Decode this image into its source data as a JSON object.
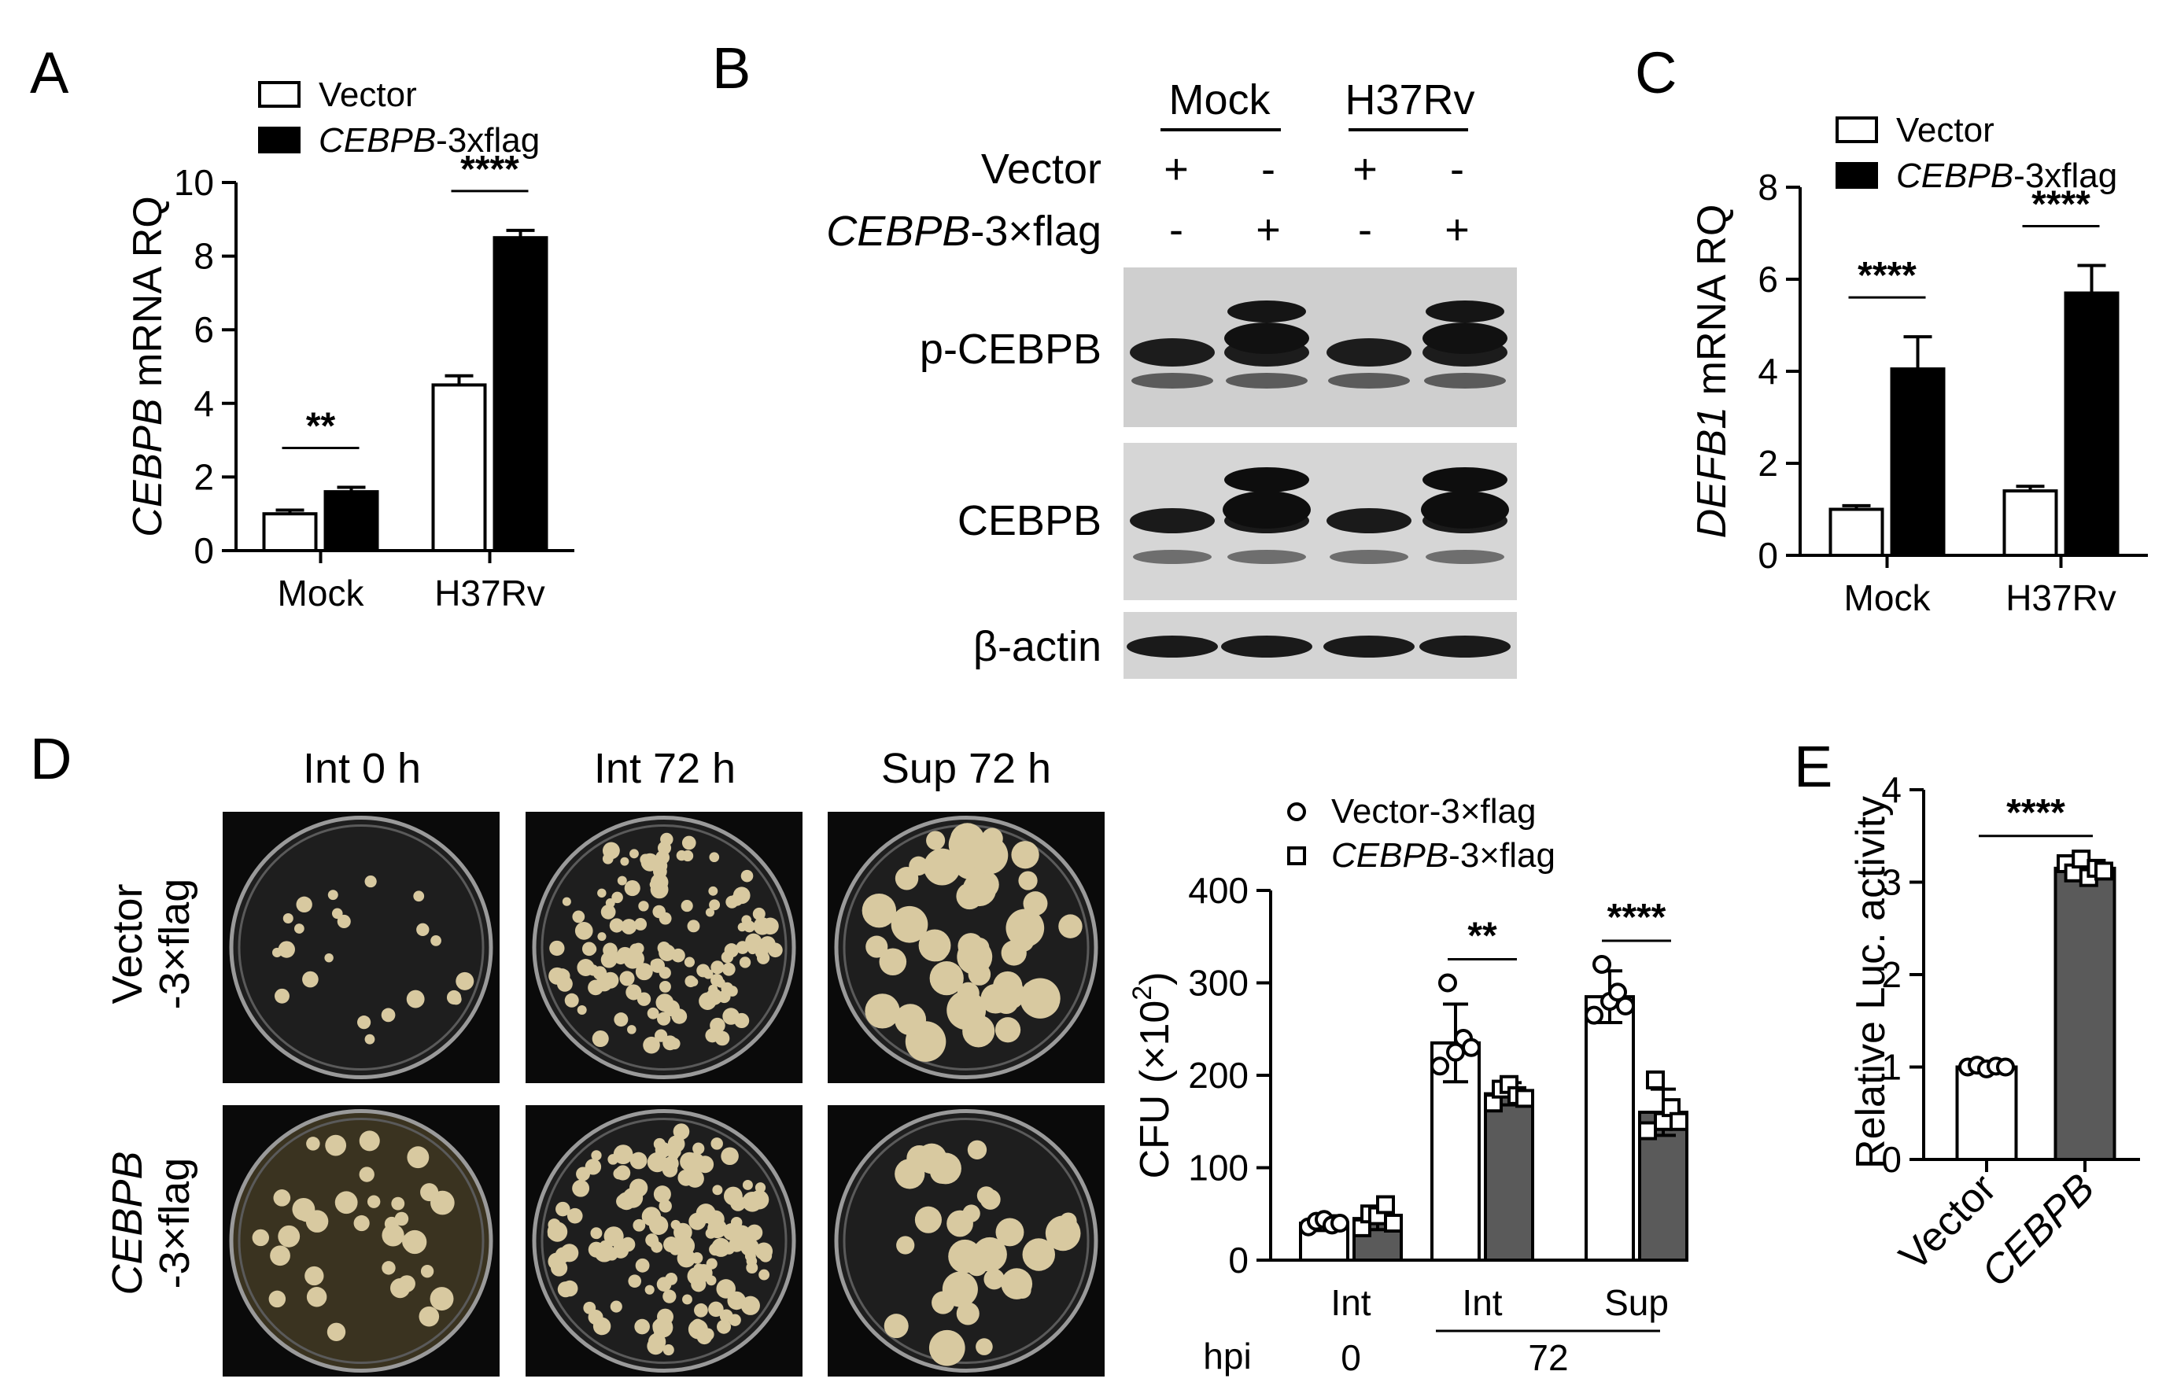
{
  "panels": [
    {
      "letter": "A",
      "chart_data": {
        "type": "bar",
        "categories": [
          "Mock",
          "H37Rv"
        ],
        "ylabel_gene": "CEBPB",
        "ylabel_suffix": " mRNA RQ",
        "ylim": [
          0,
          10
        ],
        "yticks": [
          0,
          2,
          4,
          6,
          8,
          10
        ],
        "legend": [
          {
            "gene": "",
            "suffix": "Vector"
          },
          {
            "gene": "CEBPB",
            "suffix": "-3xflag"
          }
        ],
        "series": [
          {
            "name": "Vector",
            "values": [
              1.0,
              4.5
            ],
            "errors": [
              0.1,
              0.25
            ],
            "fill": "#ffffff"
          },
          {
            "name": "CEBPB-3xflag",
            "values": [
              1.6,
              8.5
            ],
            "errors": [
              0.12,
              0.2
            ],
            "fill": "#000000"
          }
        ],
        "significance": [
          "**",
          "****"
        ]
      }
    },
    {
      "letter": "B",
      "blot": {
        "group_labels": [
          "Mock",
          "H37Rv"
        ],
        "rows": [
          {
            "label_gene": "",
            "label": "Vector",
            "marks": [
              "+",
              "-",
              "+",
              "-"
            ]
          },
          {
            "label_gene": "CEBPB",
            "label": "-3×flag",
            "marks": [
              "-",
              "+",
              "-",
              "+"
            ]
          }
        ],
        "bands": [
          "p-CEBPB",
          "CEBPB",
          "β-actin"
        ]
      }
    },
    {
      "letter": "C",
      "chart_data": {
        "type": "bar",
        "categories": [
          "Mock",
          "H37Rv"
        ],
        "ylabel_gene": "DEFB1",
        "ylabel_suffix": " mRNA RQ",
        "ylim": [
          0,
          8
        ],
        "yticks": [
          0,
          2,
          4,
          6,
          8
        ],
        "legend": [
          {
            "gene": "",
            "suffix": "Vector"
          },
          {
            "gene": "CEBPB",
            "suffix": "-3xflag"
          }
        ],
        "series": [
          {
            "name": "Vector",
            "values": [
              1.0,
              1.4
            ],
            "errors": [
              0.08,
              0.1
            ],
            "fill": "#ffffff"
          },
          {
            "name": "CEBPB-3xflag",
            "values": [
              4.05,
              5.7
            ],
            "errors": [
              0.7,
              0.6
            ],
            "fill": "#000000"
          }
        ],
        "significance": [
          "****",
          "****"
        ]
      }
    },
    {
      "letter": "D",
      "plates": {
        "columns": [
          "Int 0 h",
          "Int 72 h",
          "Sup 72 h"
        ],
        "rows": [
          {
            "gene": "",
            "line1": "Vector",
            "line2": "-3×flag"
          },
          {
            "gene": "CEBPB",
            "line1": "CEBPB",
            "line2": "-3×flag"
          }
        ]
      },
      "chart_data": {
        "type": "bar",
        "categories": [
          "Int",
          "Int",
          "Sup"
        ],
        "hpi_label": "hpi",
        "hpi_values": [
          "0",
          "72"
        ],
        "ylabel": "CFU (×10",
        "ylabel_sup": "2",
        "ylabel_end": ")",
        "ylim": [
          0,
          400
        ],
        "yticks": [
          0,
          100,
          200,
          300,
          400
        ],
        "legend": [
          {
            "gene": "",
            "suffix": "Vector-3×flag",
            "marker": "circle"
          },
          {
            "gene": "CEBPB",
            "suffix": "-3×flag",
            "marker": "square"
          }
        ],
        "series": [
          {
            "name": "Vector-3×flag",
            "values": [
              40,
              235,
              285
            ],
            "errors": [
              8,
              42,
              28
            ],
            "fill": "#ffffff",
            "points": [
              [
                36,
                42,
                44,
                38,
                40
              ],
              [
                210,
                300,
                225,
                240,
                230
              ],
              [
                265,
                320,
                280,
                290,
                275
              ]
            ]
          },
          {
            "name": "CEBPB-3×flag",
            "values": [
              45,
              180,
              160
            ],
            "errors": [
              12,
              12,
              25
            ],
            "fill": "#5a5a5a",
            "points": [
              [
                35,
                50,
                48,
                60,
                40
              ],
              [
                170,
                185,
                190,
                178,
                175
              ],
              [
                140,
                195,
                150,
                165,
                150
              ]
            ]
          }
        ],
        "significance": [
          "",
          "**",
          "****"
        ]
      }
    },
    {
      "letter": "E",
      "chart_data": {
        "type": "bar",
        "categories": [
          "Vector",
          "CEBPB"
        ],
        "ylabel": "Relative Luc. activity",
        "ylim": [
          0,
          4
        ],
        "yticks": [
          0,
          1,
          2,
          3,
          4
        ],
        "series": [
          {
            "name": "",
            "values": [
              1.0,
              3.15
            ],
            "errors": [
              0.03,
              0.08
            ],
            "fills": [
              "#ffffff",
              "#5a5a5a"
            ],
            "points": [
              [
                1.0,
                1.02,
                0.98,
                1.01,
                1.0
              ],
              [
                3.2,
                3.1,
                3.25,
                3.05,
                3.15,
                3.12
              ]
            ]
          }
        ],
        "significance": [
          "****"
        ]
      }
    }
  ]
}
